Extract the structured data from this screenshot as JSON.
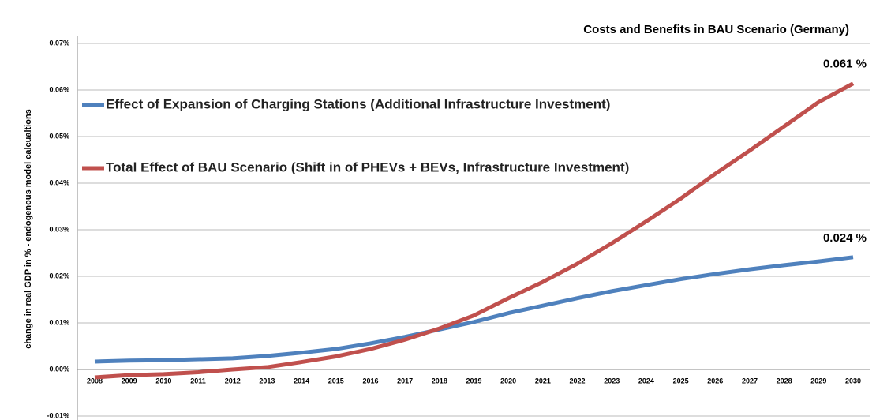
{
  "chart_data": {
    "type": "line",
    "title": "Costs and Benefits in BAU Scenario (Germany)",
    "y_label": "change in real GDP  in % - endogenous model calcualtions",
    "categories": [
      "2008",
      "2009",
      "2010",
      "2011",
      "2012",
      "2013",
      "2014",
      "2015",
      "2016",
      "2017",
      "2018",
      "2019",
      "2020",
      "2021",
      "2022",
      "2023",
      "2024",
      "2025",
      "2026",
      "2027",
      "2028",
      "2029",
      "2030"
    ],
    "series": [
      {
        "name": "Effect of Expansion of Charging Stations (Additional Infrastructure Investment)",
        "color": "#4f81bd",
        "values": [
          0.0017,
          0.0019,
          0.002,
          0.0022,
          0.0024,
          0.0029,
          0.0036,
          0.0044,
          0.0056,
          0.007,
          0.0086,
          0.0102,
          0.0121,
          0.0137,
          0.0153,
          0.0168,
          0.0181,
          0.0194,
          0.0205,
          0.0215,
          0.0224,
          0.0232,
          0.0241
        ]
      },
      {
        "name": "Total Effect of BAU Scenario (Shift in of PHEVs + BEVs, Infrastructure Investment)",
        "color": "#c0504d",
        "values": [
          -0.0017,
          -0.0012,
          -0.001,
          -0.0006,
          0.0,
          0.0005,
          0.0016,
          0.0028,
          0.0044,
          0.0064,
          0.0088,
          0.0116,
          0.0153,
          0.0188,
          0.0227,
          0.0271,
          0.0318,
          0.0367,
          0.042,
          0.047,
          0.0522,
          0.0574,
          0.0614
        ]
      }
    ],
    "annotations": [
      {
        "text": "0.061 %",
        "series": 1
      },
      {
        "text": "0.024 %",
        "series": 0
      }
    ],
    "ylim": [
      -0.01,
      0.07
    ],
    "yticks": [
      {
        "value": -0.01,
        "label": "-0.01%"
      },
      {
        "value": 0,
        "label": "0.00%"
      },
      {
        "value": 0.01,
        "label": "0.01%"
      },
      {
        "value": 0.02,
        "label": "0.02%"
      },
      {
        "value": 0.03,
        "label": "0.03%"
      },
      {
        "value": 0.04,
        "label": "0.04%"
      },
      {
        "value": 0.05,
        "label": "0.05%"
      },
      {
        "value": 0.06,
        "label": "0.06%"
      },
      {
        "value": 0.07,
        "label": "0.07%"
      }
    ],
    "grid": true,
    "legend": "upper left"
  }
}
